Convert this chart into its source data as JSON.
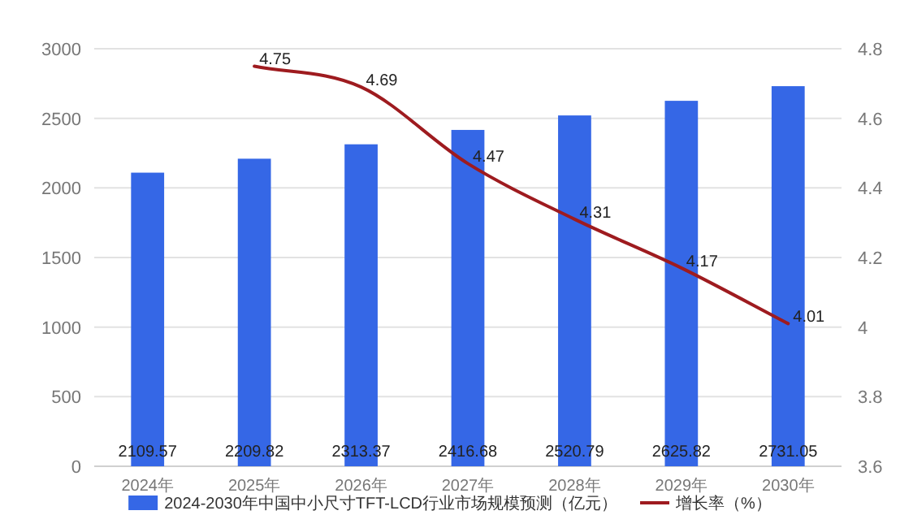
{
  "chart_data": {
    "type": "bar",
    "categories": [
      "2024年",
      "2025年",
      "2026年",
      "2027年",
      "2028年",
      "2029年",
      "2030年"
    ],
    "series": [
      {
        "name": "2024-2030年中国中小尺寸TFT-LCD行业市场规模预测（亿元）",
        "color": "#3567e6",
        "values": [
          2109.57,
          2209.82,
          2313.37,
          2416.68,
          2520.79,
          2625.82,
          2731.05
        ]
      },
      {
        "name": "增长率（%）",
        "type": "line",
        "axis": "y2",
        "color": "#9e1b1f",
        "values": [
          null,
          4.75,
          4.69,
          4.47,
          4.31,
          4.17,
          4.01
        ]
      }
    ],
    "ylim": [
      0,
      3000
    ],
    "yticks": [
      0,
      500,
      1000,
      1500,
      2000,
      2500,
      3000
    ],
    "y2lim": [
      3.6,
      4.8
    ],
    "y2ticks": [
      3.6,
      3.8,
      4,
      4.2,
      4.4,
      4.6,
      4.8
    ],
    "grid": "y",
    "legend": "bottom",
    "data_labels": true
  }
}
